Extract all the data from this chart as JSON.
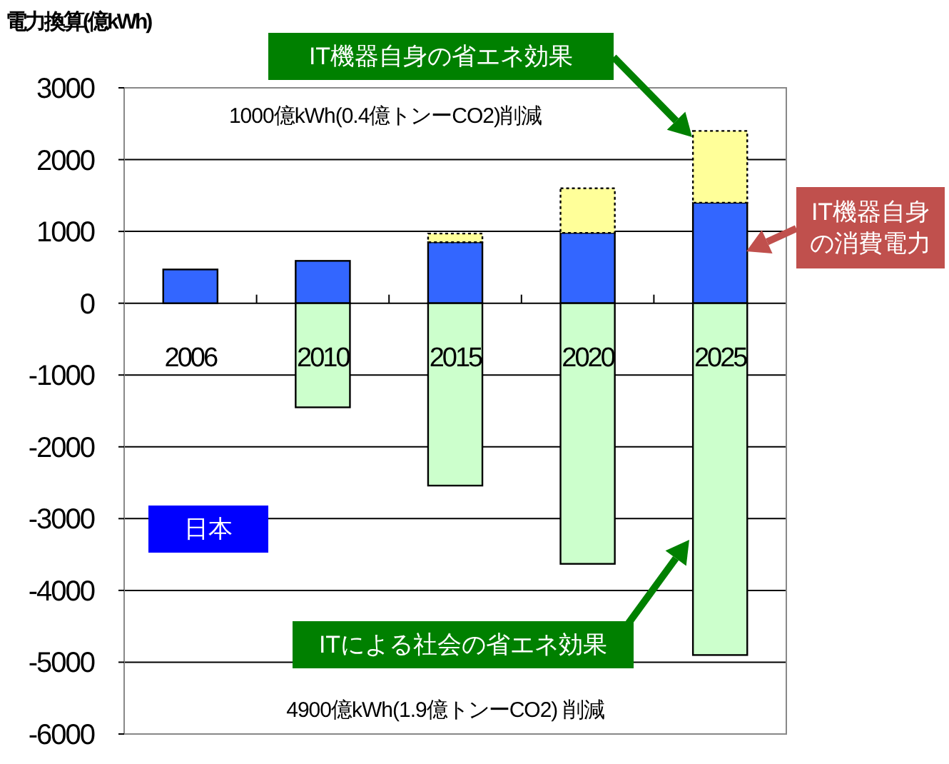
{
  "chart_data": {
    "type": "bar",
    "stacked": true,
    "ylabel": "電力換算(億kWh)",
    "categories": [
      "2006",
      "2010",
      "2015",
      "2020",
      "2025"
    ],
    "series": [
      {
        "color": "#3366ff",
        "values": [
          470,
          590,
          850,
          980,
          1400
        ]
      },
      {
        "color": "#ffff99",
        "values": [
          null,
          null,
          120,
          620,
          1000
        ]
      },
      {
        "color": "#ccffcc",
        "values": [
          null,
          -1450,
          -2540,
          -3630,
          -4900
        ]
      }
    ],
    "ylim": [
      -6000,
      3000
    ],
    "yticks": [
      -6000,
      -5000,
      -4000,
      -3000,
      -2000,
      -1000,
      0,
      1000,
      2000,
      3000
    ],
    "grid": "y",
    "annotations": [
      "1000億kWh(0.4億トンーCO2)削減",
      "4900億kWh(1.9億トンーCO2) 削減",
      "日本",
      "IT機器自身の省エネ効果",
      "IT機器自身の消費電力",
      "ITによる社会の省エネ効果"
    ]
  }
}
